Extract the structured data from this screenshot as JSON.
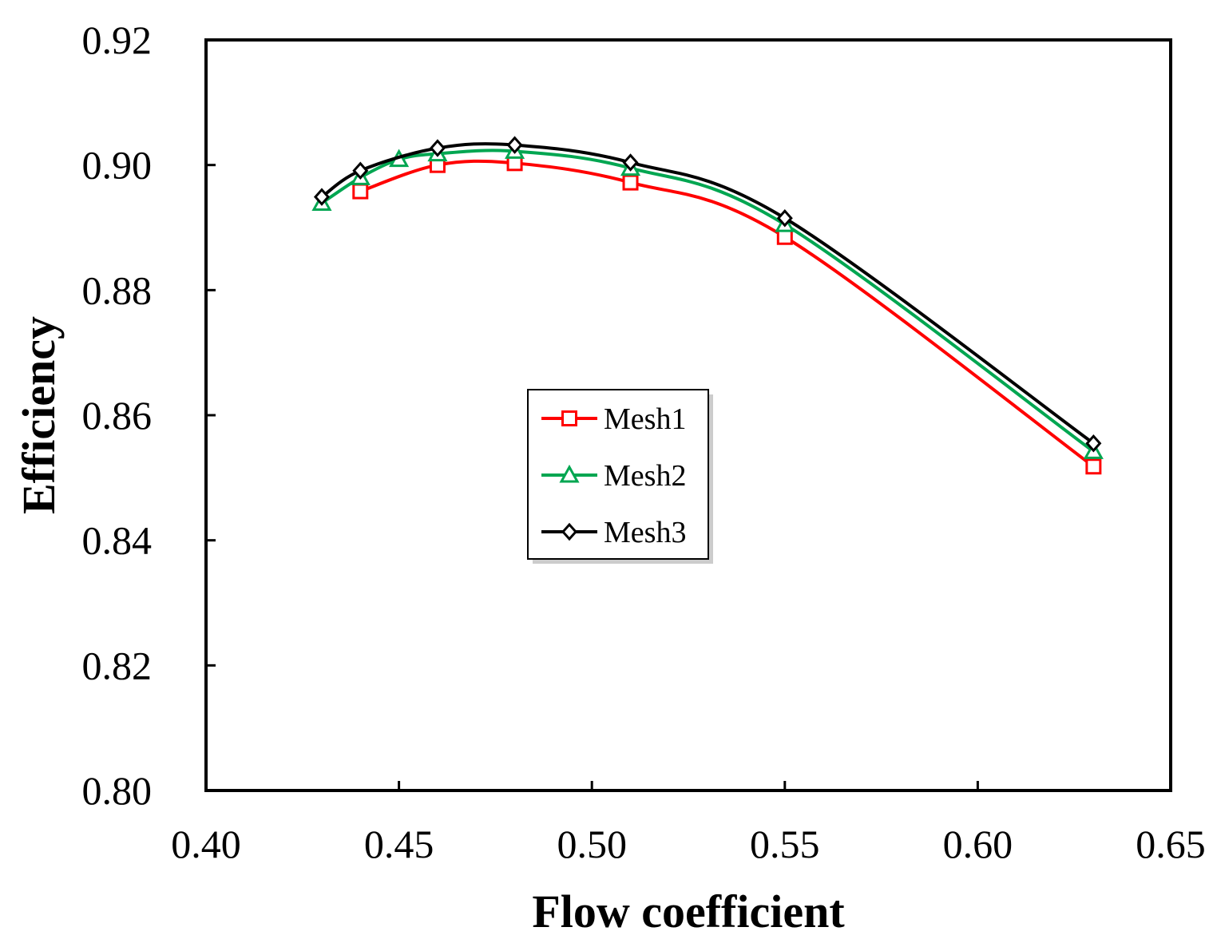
{
  "chart_data": {
    "type": "line",
    "title": "",
    "xlabel": "Flow coefficient",
    "ylabel": "Efficiency",
    "xlim": [
      0.4,
      0.65
    ],
    "ylim": [
      0.8,
      0.92
    ],
    "xticks": [
      "0.40",
      "0.45",
      "0.50",
      "0.55",
      "0.60",
      "0.65"
    ],
    "yticks": [
      "0.80",
      "0.82",
      "0.84",
      "0.86",
      "0.88",
      "0.90",
      "0.92"
    ],
    "grid": false,
    "legend_position": "center",
    "series": [
      {
        "name": "Mesh1",
        "color": "#ff0000",
        "marker": "square",
        "x": [
          0.44,
          0.46,
          0.48,
          0.51,
          0.55,
          0.63
        ],
        "y": [
          0.8958,
          0.9,
          0.9003,
          0.8972,
          0.8885,
          0.8518
        ]
      },
      {
        "name": "Mesh2",
        "color": "#00a651",
        "marker": "triangle",
        "x": [
          0.43,
          0.44,
          0.45,
          0.46,
          0.48,
          0.51,
          0.55,
          0.63
        ],
        "y": [
          0.8939,
          0.898,
          0.9009,
          0.9018,
          0.9022,
          0.8995,
          0.8905,
          0.8542
        ]
      },
      {
        "name": "Mesh3",
        "color": "#000000",
        "marker": "diamond",
        "x": [
          0.43,
          0.44,
          0.46,
          0.48,
          0.51,
          0.55,
          0.63
        ],
        "y": [
          0.8949,
          0.8991,
          0.9027,
          0.9032,
          0.9004,
          0.8915,
          0.8555
        ]
      }
    ]
  }
}
